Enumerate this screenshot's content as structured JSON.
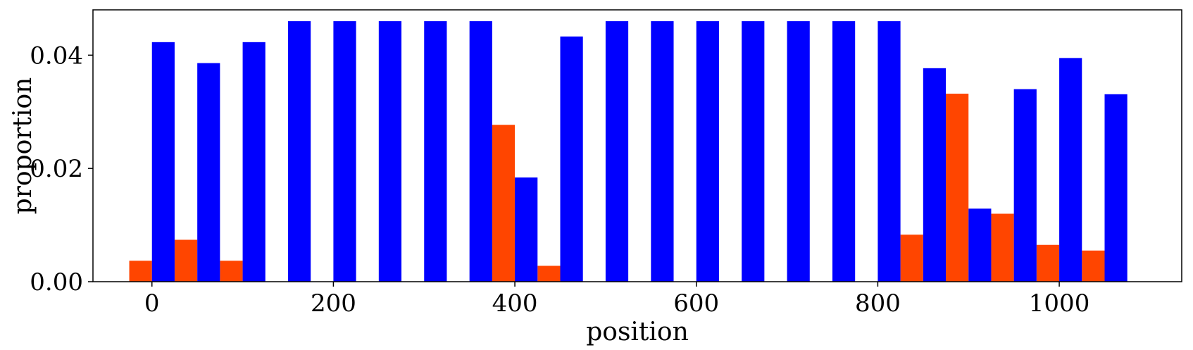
{
  "chart_data": {
    "type": "bar",
    "title": "",
    "xlabel": "position",
    "ylabel": "proportion",
    "xlim": [
      -65,
      1135
    ],
    "ylim": [
      0,
      0.048
    ],
    "grid": false,
    "legend": "none",
    "bin_width": 50,
    "x_ticks": [
      0,
      200,
      400,
      600,
      800,
      1000
    ],
    "x_tick_labels": [
      "0",
      "200",
      "400",
      "600",
      "800",
      "1000"
    ],
    "y_ticks": [
      0,
      0.02,
      0.04
    ],
    "y_tick_labels": [
      "0.00",
      "0.02",
      "0.04"
    ],
    "x": [
      0,
      50,
      100,
      150,
      200,
      250,
      300,
      350,
      400,
      450,
      500,
      550,
      600,
      650,
      700,
      750,
      800,
      850,
      900,
      950,
      1000,
      1050
    ],
    "series": [
      {
        "color": "#FF4500",
        "values": [
          0.0037,
          0.0074,
          0.0037,
          0,
          0,
          0,
          0,
          0,
          0.0277,
          0.0028,
          0,
          0,
          0,
          0,
          0,
          0,
          0,
          0.0083,
          0.0332,
          0.012,
          0.0065,
          0.0055
        ]
      },
      {
        "color": "#0000FF",
        "values": [
          0.0423,
          0.0386,
          0.0423,
          0.046,
          0.046,
          0.046,
          0.046,
          0.046,
          0.0184,
          0.0433,
          0.046,
          0.046,
          0.046,
          0.046,
          0.046,
          0.046,
          0.046,
          0.0377,
          0.0129,
          0.034,
          0.0395,
          0.0331
        ]
      }
    ]
  }
}
